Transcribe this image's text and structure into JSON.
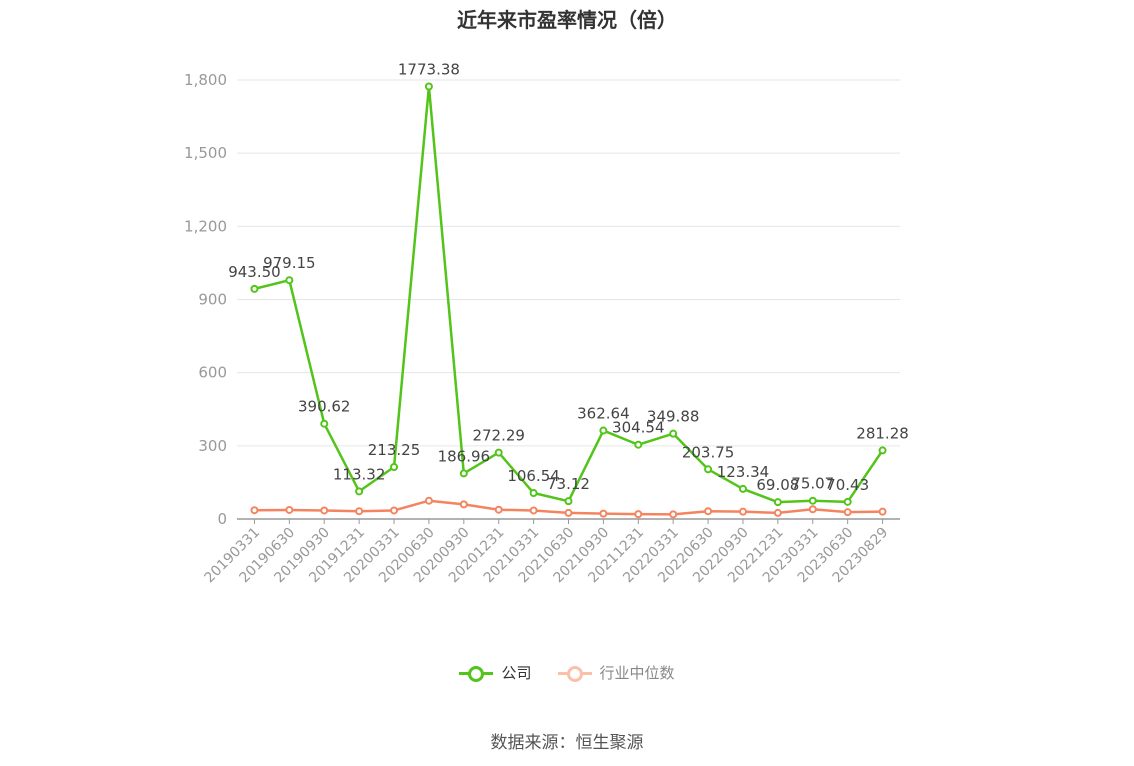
{
  "chart_data": {
    "type": "line",
    "title": "近年来市盈率情况（倍）",
    "source": "数据来源：恒生聚源",
    "categories": [
      "20190331",
      "20190630",
      "20190930",
      "20191231",
      "20200331",
      "20200630",
      "20200930",
      "20201231",
      "20210331",
      "20210630",
      "20210930",
      "20211231",
      "20220331",
      "20220630",
      "20220930",
      "20221231",
      "20230331",
      "20230630",
      "20230829"
    ],
    "ylim": [
      0,
      1800
    ],
    "yticks": [
      0,
      300,
      600,
      900,
      1200,
      1500,
      1800
    ],
    "ytick_labels": [
      "0",
      "300",
      "600",
      "900",
      "1,200",
      "1,500",
      "1,800"
    ],
    "grid": true,
    "legend_position": "bottom",
    "series": [
      {
        "name": "公司",
        "color": "#52c41a",
        "values": [
          943.5,
          979.15,
          390.62,
          113.32,
          213.25,
          1773.38,
          186.96,
          272.29,
          106.54,
          73.12,
          362.64,
          304.54,
          349.88,
          203.75,
          123.34,
          69.08,
          75.07,
          70.43,
          281.28
        ],
        "labels": [
          "943.50",
          "979.15",
          "390.62",
          "113.32",
          "213.25",
          "1773.38",
          "186.96",
          "272.29",
          "106.54",
          "73.12",
          "362.64",
          "304.54",
          "349.88",
          "203.75",
          "123.34",
          "69.08",
          "75.07",
          "70.43",
          "281.28"
        ]
      },
      {
        "name": "行业中位数",
        "color": "#f4845f",
        "values": [
          36,
          37,
          35,
          32,
          35,
          75,
          60,
          38,
          35,
          25,
          22,
          20,
          19,
          32,
          30,
          25,
          40,
          28,
          30
        ]
      }
    ]
  }
}
